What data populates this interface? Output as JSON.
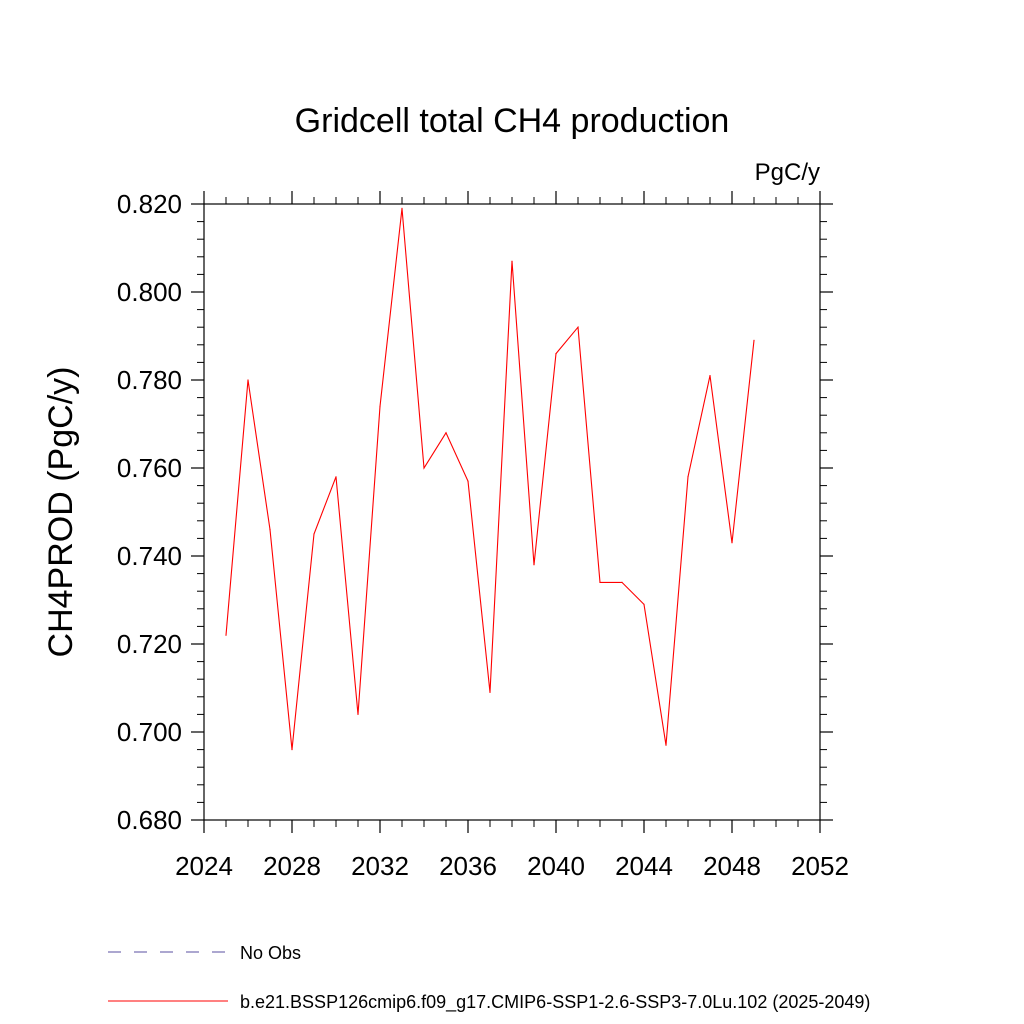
{
  "chart_data": {
    "type": "line",
    "title": "Gridcell total CH4 production",
    "units_label": "PgC/y",
    "ylabel": "CH4PROD  (PgC/y)",
    "xlabel": "",
    "xlim": [
      2024,
      2052
    ],
    "ylim": [
      0.68,
      0.82
    ],
    "x_ticks": [
      2024,
      2028,
      2032,
      2036,
      2040,
      2044,
      2048,
      2052
    ],
    "x_tick_labels": [
      "2024",
      "2028",
      "2032",
      "2036",
      "2040",
      "2044",
      "2048",
      "2052"
    ],
    "y_ticks": [
      0.68,
      0.7,
      0.72,
      0.74,
      0.76,
      0.78,
      0.8,
      0.82
    ],
    "y_tick_labels": [
      "0.680",
      "0.700",
      "0.720",
      "0.740",
      "0.760",
      "0.780",
      "0.800",
      "0.820"
    ],
    "grid": false,
    "legend_position": "bottom",
    "series": [
      {
        "name": "b.e21.BSSP126cmip6.f09_g17.CMIP6-SSP1-2.6-SSP3-7.0Lu.102 (2025-2049)",
        "color": "#ff0000",
        "style": "solid",
        "x": [
          2025,
          2026,
          2027,
          2028,
          2029,
          2030,
          2031,
          2032,
          2033,
          2034,
          2035,
          2036,
          2037,
          2038,
          2039,
          2040,
          2041,
          2042,
          2043,
          2044,
          2045,
          2046,
          2047,
          2048,
          2049
        ],
        "values": [
          0.722,
          0.78,
          0.746,
          0.696,
          0.745,
          0.758,
          0.704,
          0.774,
          0.819,
          0.76,
          0.768,
          0.757,
          0.709,
          0.807,
          0.738,
          0.786,
          0.792,
          0.734,
          0.734,
          0.729,
          0.697,
          0.758,
          0.781,
          0.743,
          0.789
        ]
      }
    ],
    "legend": [
      {
        "label": "No Obs",
        "color": "#5a4fa0",
        "style": "dashed"
      },
      {
        "label": "b.e21.BSSP126cmip6.f09_g17.CMIP6-SSP1-2.6-SSP3-7.0Lu.102 (2025-2049)",
        "color": "#ff0000",
        "style": "solid"
      }
    ]
  }
}
